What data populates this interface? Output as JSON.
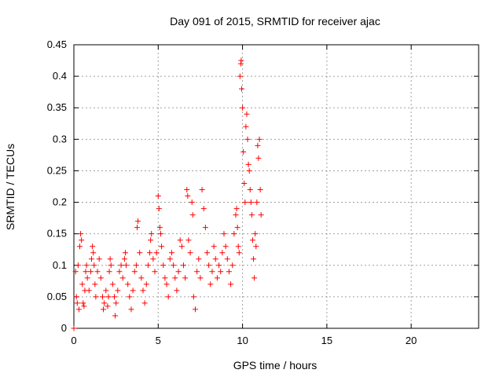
{
  "chart_data": {
    "type": "scatter",
    "title": "Day 091 of 2015, SRMTID for receiver ajac",
    "xlabel": "GPS time / hours",
    "ylabel": "SRMTID / TECUs",
    "xlim": [
      0,
      24
    ],
    "ylim": [
      0,
      0.45
    ],
    "x_ticks": [
      0,
      5,
      10,
      15,
      20
    ],
    "y_ticks": [
      0,
      0.05,
      0.1,
      0.15,
      0.2,
      0.25,
      0.3,
      0.35,
      0.4,
      0.45
    ],
    "x_tick_labels": [
      "0",
      "5",
      "10",
      "15",
      "20"
    ],
    "y_tick_labels": [
      "0",
      "0.05",
      "0.1",
      "0.15",
      "0.2",
      "0.25",
      "0.3",
      "0.35",
      "0.4",
      "0.45"
    ],
    "grid": true,
    "marker": "+",
    "series_color": "#ff0000",
    "points": [
      [
        0.0,
        0.0
      ],
      [
        0.1,
        0.09
      ],
      [
        0.15,
        0.05
      ],
      [
        0.2,
        0.04
      ],
      [
        0.25,
        0.1
      ],
      [
        0.3,
        0.03
      ],
      [
        0.35,
        0.13
      ],
      [
        0.4,
        0.15
      ],
      [
        0.45,
        0.14
      ],
      [
        0.5,
        0.07
      ],
      [
        0.55,
        0.04
      ],
      [
        0.6,
        0.035
      ],
      [
        0.65,
        0.06
      ],
      [
        0.7,
        0.09
      ],
      [
        0.75,
        0.1
      ],
      [
        0.8,
        0.08
      ],
      [
        0.9,
        0.06
      ],
      [
        1.0,
        0.09
      ],
      [
        1.05,
        0.11
      ],
      [
        1.1,
        0.13
      ],
      [
        1.15,
        0.12
      ],
      [
        1.2,
        0.1
      ],
      [
        1.25,
        0.07
      ],
      [
        1.3,
        0.05
      ],
      [
        1.4,
        0.09
      ],
      [
        1.5,
        0.11
      ],
      [
        1.6,
        0.08
      ],
      [
        1.7,
        0.05
      ],
      [
        1.75,
        0.03
      ],
      [
        1.8,
        0.04
      ],
      [
        1.9,
        0.06
      ],
      [
        2.0,
        0.035
      ],
      [
        2.05,
        0.05
      ],
      [
        2.1,
        0.09
      ],
      [
        2.15,
        0.11
      ],
      [
        2.2,
        0.1
      ],
      [
        2.3,
        0.07
      ],
      [
        2.4,
        0.05
      ],
      [
        2.45,
        0.02
      ],
      [
        2.5,
        0.04
      ],
      [
        2.6,
        0.06
      ],
      [
        2.7,
        0.09
      ],
      [
        2.8,
        0.1
      ],
      [
        2.9,
        0.08
      ],
      [
        3.0,
        0.11
      ],
      [
        3.05,
        0.12
      ],
      [
        3.1,
        0.1
      ],
      [
        3.2,
        0.07
      ],
      [
        3.3,
        0.05
      ],
      [
        3.4,
        0.03
      ],
      [
        3.5,
        0.06
      ],
      [
        3.6,
        0.09
      ],
      [
        3.7,
        0.1
      ],
      [
        3.75,
        0.16
      ],
      [
        3.8,
        0.17
      ],
      [
        3.9,
        0.12
      ],
      [
        4.0,
        0.08
      ],
      [
        4.1,
        0.06
      ],
      [
        4.2,
        0.04
      ],
      [
        4.3,
        0.07
      ],
      [
        4.4,
        0.1
      ],
      [
        4.5,
        0.12
      ],
      [
        4.55,
        0.14
      ],
      [
        4.6,
        0.15
      ],
      [
        4.7,
        0.11
      ],
      [
        4.8,
        0.09
      ],
      [
        4.9,
        0.12
      ],
      [
        5.0,
        0.21
      ],
      [
        5.05,
        0.19
      ],
      [
        5.1,
        0.16
      ],
      [
        5.15,
        0.15
      ],
      [
        5.2,
        0.13
      ],
      [
        5.3,
        0.1
      ],
      [
        5.4,
        0.08
      ],
      [
        5.5,
        0.07
      ],
      [
        5.6,
        0.05
      ],
      [
        5.7,
        0.11
      ],
      [
        5.8,
        0.12
      ],
      [
        5.9,
        0.1
      ],
      [
        6.0,
        0.08
      ],
      [
        6.1,
        0.06
      ],
      [
        6.2,
        0.09
      ],
      [
        6.3,
        0.14
      ],
      [
        6.4,
        0.13
      ],
      [
        6.5,
        0.1
      ],
      [
        6.6,
        0.08
      ],
      [
        6.7,
        0.22
      ],
      [
        6.75,
        0.21
      ],
      [
        6.8,
        0.14
      ],
      [
        6.9,
        0.12
      ],
      [
        7.0,
        0.2
      ],
      [
        7.05,
        0.18
      ],
      [
        7.1,
        0.05
      ],
      [
        7.2,
        0.03
      ],
      [
        7.3,
        0.09
      ],
      [
        7.4,
        0.11
      ],
      [
        7.5,
        0.08
      ],
      [
        7.6,
        0.22
      ],
      [
        7.7,
        0.19
      ],
      [
        7.8,
        0.16
      ],
      [
        7.9,
        0.12
      ],
      [
        8.0,
        0.1
      ],
      [
        8.1,
        0.07
      ],
      [
        8.2,
        0.09
      ],
      [
        8.3,
        0.13
      ],
      [
        8.4,
        0.11
      ],
      [
        8.5,
        0.08
      ],
      [
        8.6,
        0.1
      ],
      [
        8.7,
        0.09
      ],
      [
        8.8,
        0.12
      ],
      [
        8.9,
        0.15
      ],
      [
        9.0,
        0.13
      ],
      [
        9.1,
        0.11
      ],
      [
        9.2,
        0.09
      ],
      [
        9.3,
        0.07
      ],
      [
        9.4,
        0.1
      ],
      [
        9.5,
        0.15
      ],
      [
        9.6,
        0.18
      ],
      [
        9.65,
        0.19
      ],
      [
        9.7,
        0.16
      ],
      [
        9.75,
        0.13
      ],
      [
        9.8,
        0.12
      ],
      [
        9.85,
        0.4
      ],
      [
        9.9,
        0.42
      ],
      [
        9.92,
        0.425
      ],
      [
        9.95,
        0.38
      ],
      [
        10.0,
        0.35
      ],
      [
        10.05,
        0.28
      ],
      [
        10.1,
        0.23
      ],
      [
        10.15,
        0.2
      ],
      [
        10.2,
        0.32
      ],
      [
        10.25,
        0.34
      ],
      [
        10.3,
        0.3
      ],
      [
        10.35,
        0.26
      ],
      [
        10.4,
        0.25
      ],
      [
        10.45,
        0.22
      ],
      [
        10.5,
        0.2
      ],
      [
        10.55,
        0.18
      ],
      [
        10.6,
        0.14
      ],
      [
        10.65,
        0.11
      ],
      [
        10.7,
        0.08
      ],
      [
        10.75,
        0.15
      ],
      [
        10.8,
        0.13
      ],
      [
        10.85,
        0.2
      ],
      [
        10.9,
        0.29
      ],
      [
        10.95,
        0.27
      ],
      [
        11.0,
        0.3
      ],
      [
        11.05,
        0.22
      ],
      [
        11.1,
        0.18
      ]
    ]
  }
}
